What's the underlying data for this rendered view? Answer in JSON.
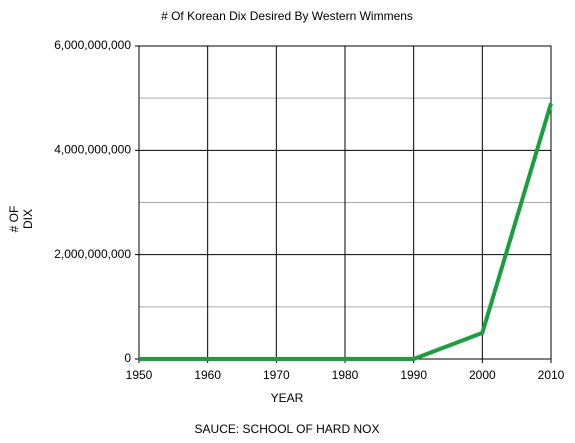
{
  "chart_data": {
    "type": "line",
    "title": "# Of Korean Dix Desired By Western Wimmens",
    "xlabel": "YEAR",
    "ylabel": [
      "# OF",
      "DIX"
    ],
    "footer": "SAUCE: SCHOOL OF HARD NOX",
    "x": [
      1950,
      1960,
      1970,
      1980,
      1990,
      2000,
      2010
    ],
    "values": [
      0,
      0,
      0,
      0,
      0,
      500000000,
      4900000000
    ],
    "color": "#17a03c",
    "xlim": [
      1950,
      2010
    ],
    "xticks": [
      1950,
      1960,
      1970,
      1980,
      1990,
      2000,
      2010
    ],
    "ylim": [
      0,
      6000000000
    ],
    "yticks": [
      0,
      {
        "value": 2000000000,
        "label": "2,000,000,000"
      },
      {
        "value": 4000000000,
        "label": "4,000,000,000"
      },
      {
        "value": 6000000000,
        "label": "6,000,000,000"
      }
    ],
    "minor_yticks": [
      1000000000,
      3000000000,
      5000000000
    ],
    "grid": true
  }
}
